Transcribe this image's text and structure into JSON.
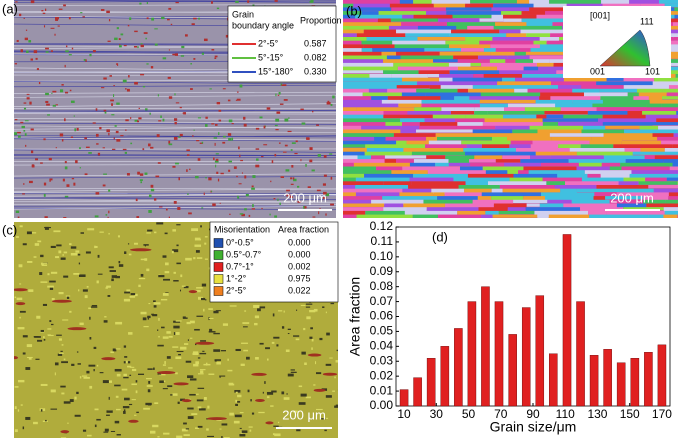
{
  "panels": {
    "a": {
      "label": "(a)",
      "scale_bar": "200 μm",
      "legend": {
        "headers": [
          "Grain",
          "boundary angle",
          "Proportion"
        ],
        "rows": [
          {
            "name": "2°-5°",
            "value": "0.587",
            "color": "#e03030"
          },
          {
            "name": "5°-15°",
            "value": "0.082",
            "color": "#60c040"
          },
          {
            "name": "15°-180°",
            "value": "0.330",
            "color": "#3050c0"
          }
        ]
      }
    },
    "b": {
      "label": "(b)",
      "scale_bar": "200 μm",
      "key": {
        "title": "[001]",
        "corners": [
          "111",
          "001",
          "101"
        ]
      }
    },
    "c": {
      "label": "(c)",
      "scale_bar": "200 μm",
      "legend": {
        "headers": [
          "Misorientation",
          "Area fraction"
        ],
        "rows": [
          {
            "name": "0°-0.5°",
            "value": "0.000",
            "color": "#2050b0"
          },
          {
            "name": "0.5°-0.7°",
            "value": "0.000",
            "color": "#40b030"
          },
          {
            "name": "0.7°-1°",
            "value": "0.002",
            "color": "#e02020"
          },
          {
            "name": "1°-2°",
            "value": "0.975",
            "color": "#e8e040"
          },
          {
            "name": "2°-5°",
            "value": "0.022",
            "color": "#f08020"
          }
        ]
      }
    }
  },
  "chart_data": {
    "type": "bar",
    "label": "(d)",
    "xlabel": "Grain size/μm",
    "ylabel": "Area fraction",
    "color": "#e02020",
    "x": [
      10,
      18.4,
      26.8,
      35.3,
      43.7,
      52.1,
      60.5,
      68.9,
      77.4,
      85.8,
      94.2,
      102.6,
      111.1,
      119.5,
      127.9,
      136.3,
      144.7,
      153.2,
      161.6,
      170
    ],
    "values": [
      0.011,
      0.019,
      0.032,
      0.04,
      0.052,
      0.07,
      0.08,
      0.07,
      0.048,
      0.066,
      0.074,
      0.035,
      0.115,
      0.07,
      0.034,
      0.038,
      0.029,
      0.032,
      0.036,
      0.041
    ],
    "xlim": [
      5,
      175
    ],
    "xticks": [
      10,
      30,
      50,
      70,
      90,
      110,
      130,
      150,
      170
    ],
    "ylim": [
      0,
      0.12
    ],
    "yticks": [
      {
        "value": 0,
        "label": "0.00"
      },
      0.01,
      0.02,
      0.03,
      0.04,
      0.05,
      0.06,
      0.07,
      0.08,
      0.09,
      {
        "value": 0.1,
        "label": "0.10"
      },
      0.11,
      0.12
    ]
  }
}
